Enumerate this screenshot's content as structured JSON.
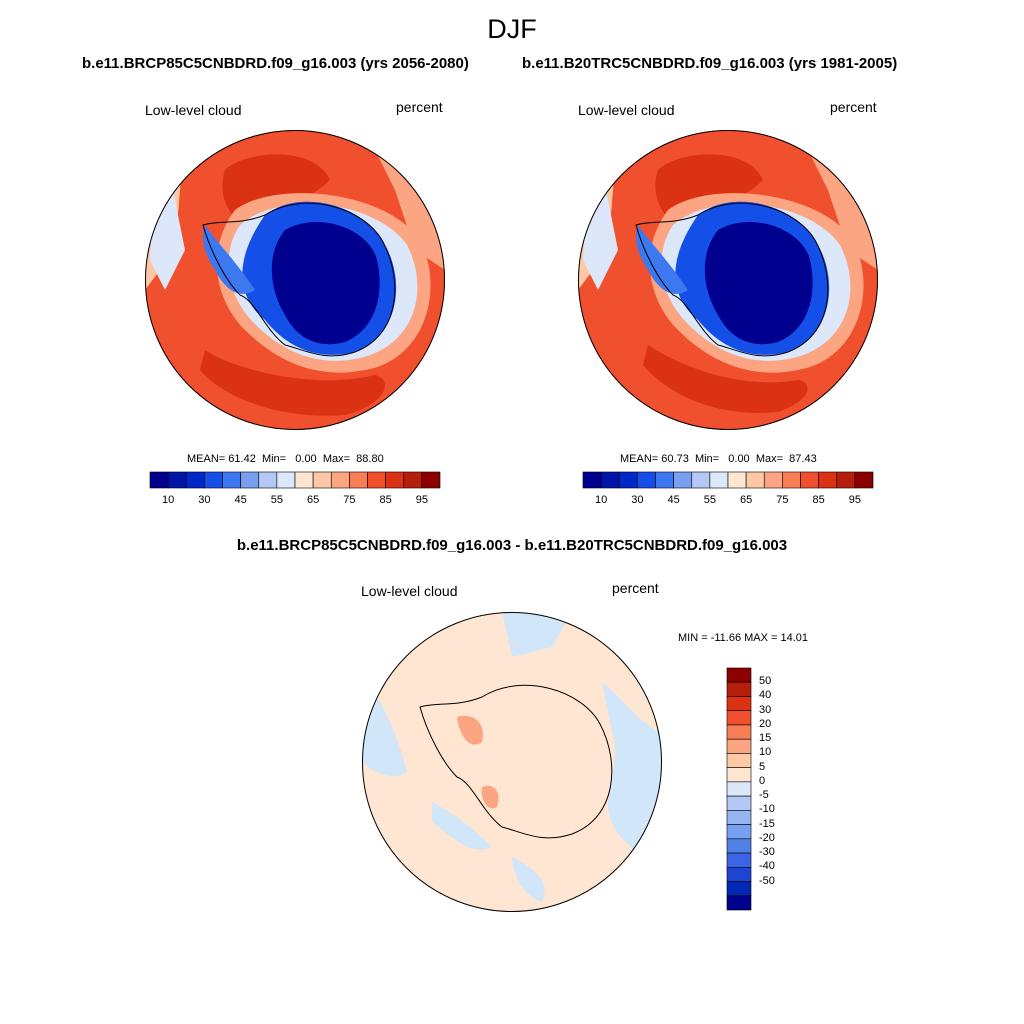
{
  "figure": {
    "season_title": "DJF",
    "title_left": "b.e11.BRCP85C5CNBDRD.f09_g16.003 (yrs 2056-2080)",
    "title_right": "b.e11.B20TRC5CNBDRD.f09_g16.003 (yrs 1981-2005)",
    "title_diff": "b.e11.BRCP85C5CNBDRD.f09_g16.003 - b.e11.B20TRC5CNBDRD.f09_g16.003"
  },
  "panels": [
    {
      "id": "future",
      "variable_label": "Low-level cloud",
      "units_label": "percent",
      "stats": {
        "mean_label": "MEAN=",
        "mean": "61.42",
        "min_label": "Min=",
        "min": "0.00",
        "max_label": "Max=",
        "max": "88.80"
      }
    },
    {
      "id": "historical",
      "variable_label": "Low-level cloud",
      "units_label": "percent",
      "stats": {
        "mean_label": "MEAN=",
        "mean": "60.73",
        "min_label": "Min=",
        "min": "0.00",
        "max_label": "Max=",
        "max": "87.43"
      }
    },
    {
      "id": "difference",
      "variable_label": "Low-level cloud",
      "units_label": "percent",
      "stats_text": "MIN = -11.66 MAX =  14.01"
    }
  ],
  "colorbar_abs": {
    "colors": [
      "#00008f",
      "#0014a8",
      "#0028c8",
      "#1450e8",
      "#3c78f0",
      "#78a0f0",
      "#b4c8f5",
      "#dce8fa",
      "#ffe6d2",
      "#fcc8a5",
      "#fca582",
      "#f77e55",
      "#f0502d",
      "#dc3214",
      "#b41e0a",
      "#8c0000"
    ],
    "labels": [
      "10",
      "30",
      "45",
      "55",
      "65",
      "75",
      "85",
      "95"
    ]
  },
  "colorbar_diff": {
    "colors_top_to_bottom": [
      "#8c0000",
      "#b41e0a",
      "#dc3214",
      "#f0502d",
      "#f77e55",
      "#fca582",
      "#fcc8a5",
      "#ffe6d2",
      "#dce8fa",
      "#b4c8f5",
      "#96b4f0",
      "#78a0f0",
      "#5082e6",
      "#3c64e6",
      "#1e46d2",
      "#0028b4",
      "#00008f"
    ],
    "labels": [
      "50",
      "40",
      "30",
      "20",
      "15",
      "10",
      "5",
      "0",
      "-5",
      "-10",
      "-15",
      "-20",
      "-30",
      "-40",
      "-50"
    ]
  },
  "map_colors": {
    "ocean_high": "#f0502d",
    "ocean_peak": "#dc3214",
    "ocean_mid": "#fca582",
    "ocean_low": "#fcc8a5",
    "coast_pale": "#dce8fa",
    "ice_deep": "#00008f",
    "ice_mid": "#1450e8",
    "ice_light": "#3c78f0",
    "diff_warm": "#ffe6d2",
    "diff_cool": "#d2e6fa",
    "diff_hot": "#fca582",
    "coastline": "#000000"
  }
}
